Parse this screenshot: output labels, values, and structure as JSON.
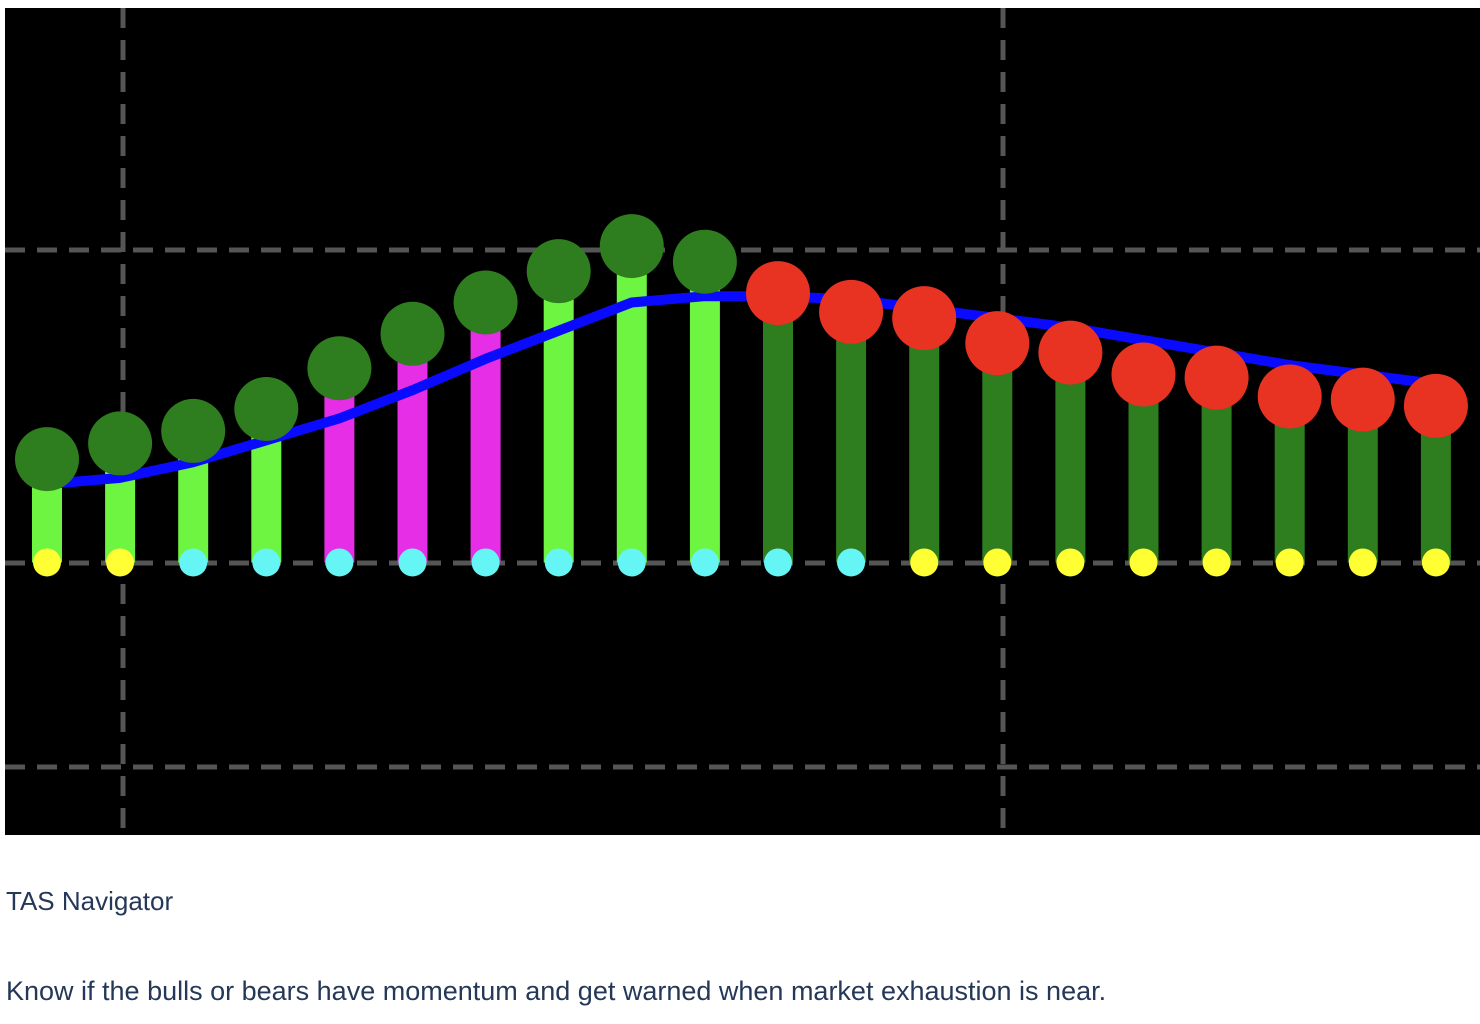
{
  "chart_data": {
    "type": "bar",
    "ylim": [
      -87,
      177
    ],
    "series": [
      {
        "type": "bar",
        "values": [
          33,
          38,
          42,
          49,
          62,
          73,
          83,
          93,
          101,
          96,
          86,
          80,
          78,
          70,
          67,
          60,
          59,
          53,
          52,
          50
        ],
        "colors": [
          "#6ef542",
          "#6ef542",
          "#6ef542",
          "#6ef542",
          "#e62ee6",
          "#e62ee6",
          "#e62ee6",
          "#6ef542",
          "#6ef542",
          "#6ef542",
          "#2e7d1e",
          "#2e7d1e",
          "#2e7d1e",
          "#2e7d1e",
          "#2e7d1e",
          "#2e7d1e",
          "#2e7d1e",
          "#2e7d1e",
          "#2e7d1e",
          "#2e7d1e"
        ],
        "head_colors": [
          "#2e7d1e",
          "#2e7d1e",
          "#2e7d1e",
          "#2e7d1e",
          "#2e7d1e",
          "#2e7d1e",
          "#2e7d1e",
          "#2e7d1e",
          "#2e7d1e",
          "#2e7d1e",
          "#e83222",
          "#e83222",
          "#e83222",
          "#e83222",
          "#e83222",
          "#e83222",
          "#e83222",
          "#e83222",
          "#e83222",
          "#e83222"
        ]
      },
      {
        "type": "dot",
        "values": [
          0,
          0,
          0,
          0,
          0,
          0,
          0,
          0,
          0,
          0,
          0,
          0,
          0,
          0,
          0,
          0,
          0,
          0,
          0,
          0
        ],
        "colors": [
          "#ffff33",
          "#ffff33",
          "#66f5f5",
          "#66f5f5",
          "#66f5f5",
          "#66f5f5",
          "#66f5f5",
          "#66f5f5",
          "#66f5f5",
          "#66f5f5",
          "#66f5f5",
          "#66f5f5",
          "#ffff33",
          "#ffff33",
          "#ffff33",
          "#ffff33",
          "#ffff33",
          "#ffff33",
          "#ffff33",
          "#ffff33"
        ]
      },
      {
        "type": "line",
        "color": "#0a0aff",
        "values": [
          25,
          27,
          32,
          39,
          46,
          55,
          65,
          74,
          83,
          85,
          85,
          84,
          81,
          78,
          75,
          71,
          67,
          63,
          60,
          57
        ]
      }
    ]
  },
  "caption": {
    "title": "TAS Navigator",
    "text": "Know if the bulls or bears have momentum and get warned when market exhaustion is near."
  }
}
